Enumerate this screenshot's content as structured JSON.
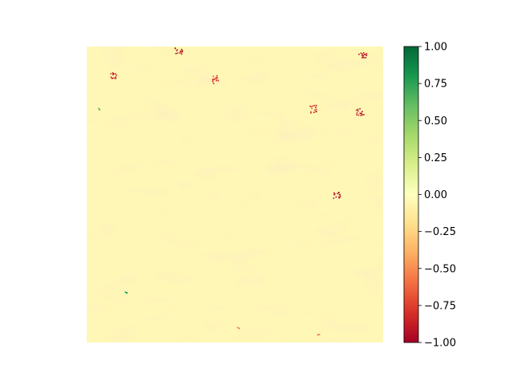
{
  "chart_data": {
    "type": "heatmap",
    "title": "",
    "xlabel": "",
    "ylabel": "",
    "colormap": "RdYlGn",
    "vmin": -1.0,
    "vmax": 1.0,
    "background_value": -0.05,
    "colorbar": {
      "ticks": [
        1.0,
        0.75,
        0.5,
        0.25,
        0.0,
        -0.25,
        -0.5,
        -0.75,
        -1.0
      ],
      "tick_labels": [
        "1.00",
        "0.75",
        "0.50",
        "0.25",
        "0.00",
        "−0.25",
        "−0.50",
        "−0.75",
        "−1.00"
      ]
    },
    "axes_visible": false,
    "notable_features": [
      {
        "kind": "cluster",
        "value": -0.95,
        "x": 0.84,
        "y": 0.5
      },
      {
        "kind": "cluster",
        "value": -0.9,
        "x": 0.93,
        "y": 0.03
      },
      {
        "kind": "cluster",
        "value": -0.9,
        "x": 0.31,
        "y": 0.01
      },
      {
        "kind": "cluster",
        "value": -0.85,
        "x": 0.09,
        "y": 0.1
      },
      {
        "kind": "cluster",
        "value": -0.8,
        "x": 0.43,
        "y": 0.11
      },
      {
        "kind": "cluster",
        "value": -0.85,
        "x": 0.76,
        "y": 0.21
      },
      {
        "kind": "cluster",
        "value": -0.9,
        "x": 0.92,
        "y": 0.22
      },
      {
        "kind": "point",
        "value": 0.8,
        "x": 0.13,
        "y": 0.83
      },
      {
        "kind": "point",
        "value": 0.7,
        "x": 0.04,
        "y": 0.21
      },
      {
        "kind": "point",
        "value": -0.7,
        "x": 0.51,
        "y": 0.95
      },
      {
        "kind": "point",
        "value": -0.6,
        "x": 0.78,
        "y": 0.97
      }
    ]
  }
}
